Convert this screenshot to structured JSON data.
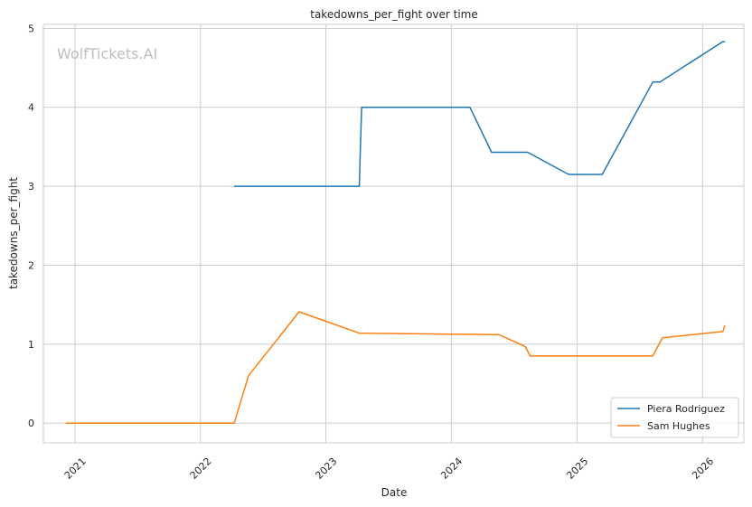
{
  "chart_data": {
    "type": "line",
    "title": "takedowns_per_fight over time",
    "xlabel": "Date",
    "ylabel": "takedowns_per_fight",
    "watermark": "WolfTickets.AI",
    "xlim": [
      "2020-10-01",
      "2026-05-01"
    ],
    "ylim": [
      -0.25,
      5.05
    ],
    "x_ticks": [
      "2021-01-01",
      "2022-01-01",
      "2023-01-01",
      "2024-01-01",
      "2025-01-01",
      "2026-01-01"
    ],
    "x_tick_labels": [
      "2021",
      "2022",
      "2023",
      "2024",
      "2025",
      "2026"
    ],
    "y_ticks": [
      0,
      1,
      2,
      3,
      4,
      5
    ],
    "y_tick_labels": [
      "0",
      "1",
      "2",
      "3",
      "4",
      "5"
    ],
    "grid": true,
    "legend_position": "bottom-right",
    "series": [
      {
        "name": "Piera Rodriguez",
        "color": "#1f77b4",
        "points": [
          [
            "2022-04-09",
            3.0
          ],
          [
            "2023-04-08",
            3.0
          ],
          [
            "2023-04-15",
            4.0
          ],
          [
            "2024-02-24",
            4.0
          ],
          [
            "2024-04-27",
            3.43
          ],
          [
            "2024-08-10",
            3.43
          ],
          [
            "2024-12-07",
            3.15
          ],
          [
            "2025-03-15",
            3.15
          ],
          [
            "2025-08-09",
            4.32
          ],
          [
            "2025-08-30",
            4.32
          ],
          [
            "2026-02-28",
            4.83
          ],
          [
            "2026-03-07",
            4.83
          ]
        ]
      },
      {
        "name": "Sam Hughes",
        "color": "#ff7f0e",
        "points": [
          [
            "2020-12-05",
            0.0
          ],
          [
            "2022-04-09",
            0.0
          ],
          [
            "2022-05-21",
            0.6
          ],
          [
            "2022-10-15",
            1.41
          ],
          [
            "2023-04-08",
            1.14
          ],
          [
            "2024-05-18",
            1.12
          ],
          [
            "2024-08-03",
            0.97
          ],
          [
            "2024-08-17",
            0.85
          ],
          [
            "2025-08-09",
            0.85
          ],
          [
            "2025-09-06",
            1.08
          ],
          [
            "2026-03-01",
            1.16
          ],
          [
            "2026-03-07",
            1.24
          ]
        ]
      }
    ]
  }
}
